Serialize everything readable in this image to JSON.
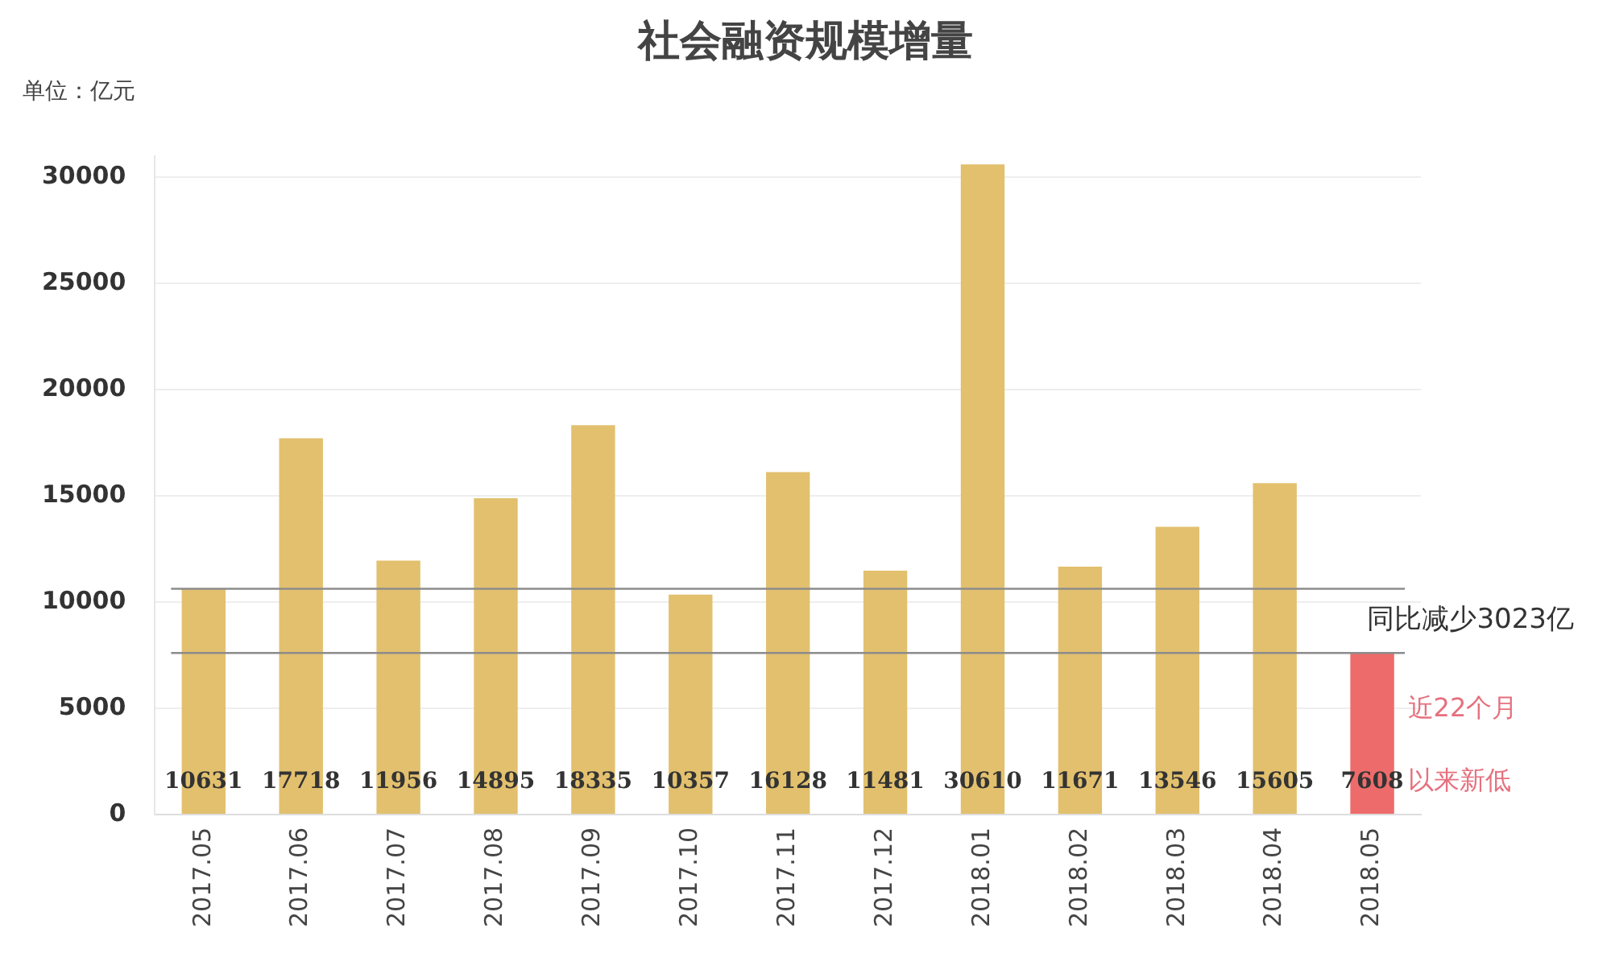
{
  "chart_data": {
    "type": "bar",
    "title": "社会融资规模增量",
    "ylabel": "单位：亿元",
    "categories": [
      "2017.05",
      "2017.06",
      "2017.07",
      "2017.08",
      "2017.09",
      "2017.10",
      "2017.11",
      "2017.12",
      "2018.01",
      "2018.02",
      "2018.03",
      "2018.04",
      "2018.05"
    ],
    "values": [
      10631,
      17718,
      11956,
      14895,
      18335,
      10357,
      16128,
      11481,
      30610,
      11671,
      13546,
      15605,
      7608
    ],
    "colors": [
      "#e2c06e",
      "#e2c06e",
      "#e2c06e",
      "#e2c06e",
      "#e2c06e",
      "#e2c06e",
      "#e2c06e",
      "#e2c06e",
      "#e2c06e",
      "#e2c06e",
      "#e2c06e",
      "#e2c06e",
      "#ee6b6b"
    ],
    "ylim": [
      0,
      31000
    ],
    "yticks": [
      0,
      5000,
      10000,
      15000,
      20000,
      25000,
      30000
    ],
    "grid": "y",
    "data_labels": true,
    "legend": false,
    "ref_lines": [
      {
        "axis": "y",
        "value": 10631,
        "color": "#8c8c8c"
      },
      {
        "axis": "y",
        "value": 7608,
        "color": "#8c8c8c"
      }
    ],
    "annotations": [
      "同比减少3023亿",
      "近22个月",
      "以来新低"
    ]
  }
}
